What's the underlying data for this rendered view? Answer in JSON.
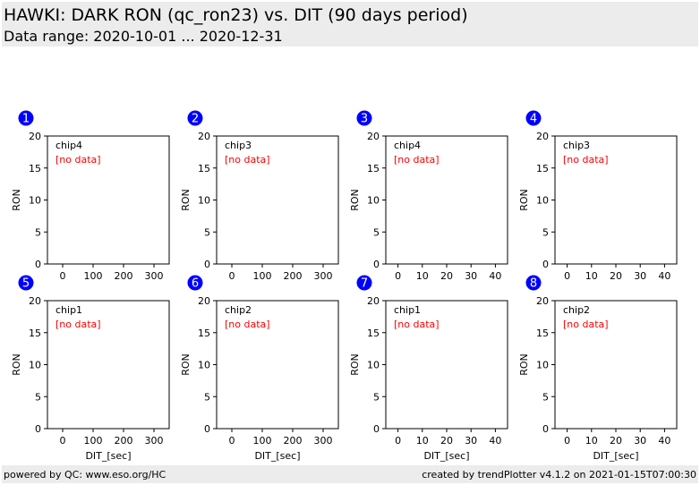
{
  "header": {
    "title": "HAWKI: DARK RON (qc_ron23) vs. DIT (90 days period)",
    "subtitle": "Data range: 2020-10-01 ... 2020-12-31"
  },
  "footer": {
    "left": "powered by QC: www.eso.org/HC",
    "right": "created by trendPlotter v4.1.2 on 2021-01-15T07:00:30"
  },
  "colors": {
    "badge": "#0000ff",
    "no_data": "#ff0000",
    "header_bg": "#ececec"
  },
  "chart_data": [
    {
      "type": "scatter",
      "badge": "1",
      "label": "chip4",
      "status": "[no data]",
      "xlabel": "",
      "ylabel": "RON",
      "xlim": [
        -50,
        350
      ],
      "ylim": [
        0,
        20
      ],
      "xticks": [
        0,
        100,
        200,
        300
      ],
      "yticks": [
        0,
        5,
        10,
        15,
        20
      ],
      "x": [],
      "y": []
    },
    {
      "type": "scatter",
      "badge": "2",
      "label": "chip3",
      "status": "[no data]",
      "xlabel": "",
      "ylabel": "RON",
      "xlim": [
        -50,
        350
      ],
      "ylim": [
        0,
        20
      ],
      "xticks": [
        0,
        100,
        200,
        300
      ],
      "yticks": [
        0,
        5,
        10,
        15,
        20
      ],
      "x": [],
      "y": []
    },
    {
      "type": "scatter",
      "badge": "3",
      "label": "chip4",
      "status": "[no data]",
      "xlabel": "",
      "ylabel": "RON",
      "xlim": [
        -5,
        45
      ],
      "ylim": [
        0,
        20
      ],
      "xticks": [
        0,
        10,
        20,
        30,
        40
      ],
      "yticks": [
        0,
        5,
        10,
        15,
        20
      ],
      "x": [],
      "y": []
    },
    {
      "type": "scatter",
      "badge": "4",
      "label": "chip3",
      "status": "[no data]",
      "xlabel": "",
      "ylabel": "RON",
      "xlim": [
        -5,
        45
      ],
      "ylim": [
        0,
        20
      ],
      "xticks": [
        0,
        10,
        20,
        30,
        40
      ],
      "yticks": [
        0,
        5,
        10,
        15,
        20
      ],
      "x": [],
      "y": []
    },
    {
      "type": "scatter",
      "badge": "5",
      "label": "chip1",
      "status": "[no data]",
      "xlabel": "DIT_[sec]",
      "ylabel": "RON",
      "xlim": [
        -50,
        350
      ],
      "ylim": [
        0,
        20
      ],
      "xticks": [
        0,
        100,
        200,
        300
      ],
      "yticks": [
        0,
        5,
        10,
        15,
        20
      ],
      "x": [],
      "y": []
    },
    {
      "type": "scatter",
      "badge": "6",
      "label": "chip2",
      "status": "[no data]",
      "xlabel": "DIT_[sec]",
      "ylabel": "RON",
      "xlim": [
        -50,
        350
      ],
      "ylim": [
        0,
        20
      ],
      "xticks": [
        0,
        100,
        200,
        300
      ],
      "yticks": [
        0,
        5,
        10,
        15,
        20
      ],
      "x": [],
      "y": []
    },
    {
      "type": "scatter",
      "badge": "7",
      "label": "chip1",
      "status": "[no data]",
      "xlabel": "DIT_[sec]",
      "ylabel": "RON",
      "xlim": [
        -5,
        45
      ],
      "ylim": [
        0,
        20
      ],
      "xticks": [
        0,
        10,
        20,
        30,
        40
      ],
      "yticks": [
        0,
        5,
        10,
        15,
        20
      ],
      "x": [],
      "y": []
    },
    {
      "type": "scatter",
      "badge": "8",
      "label": "chip2",
      "status": "[no data]",
      "xlabel": "DIT_[sec]",
      "ylabel": "RON",
      "xlim": [
        -5,
        45
      ],
      "ylim": [
        0,
        20
      ],
      "xticks": [
        0,
        10,
        20,
        30,
        40
      ],
      "yticks": [
        0,
        5,
        10,
        15,
        20
      ],
      "x": [],
      "y": []
    }
  ]
}
